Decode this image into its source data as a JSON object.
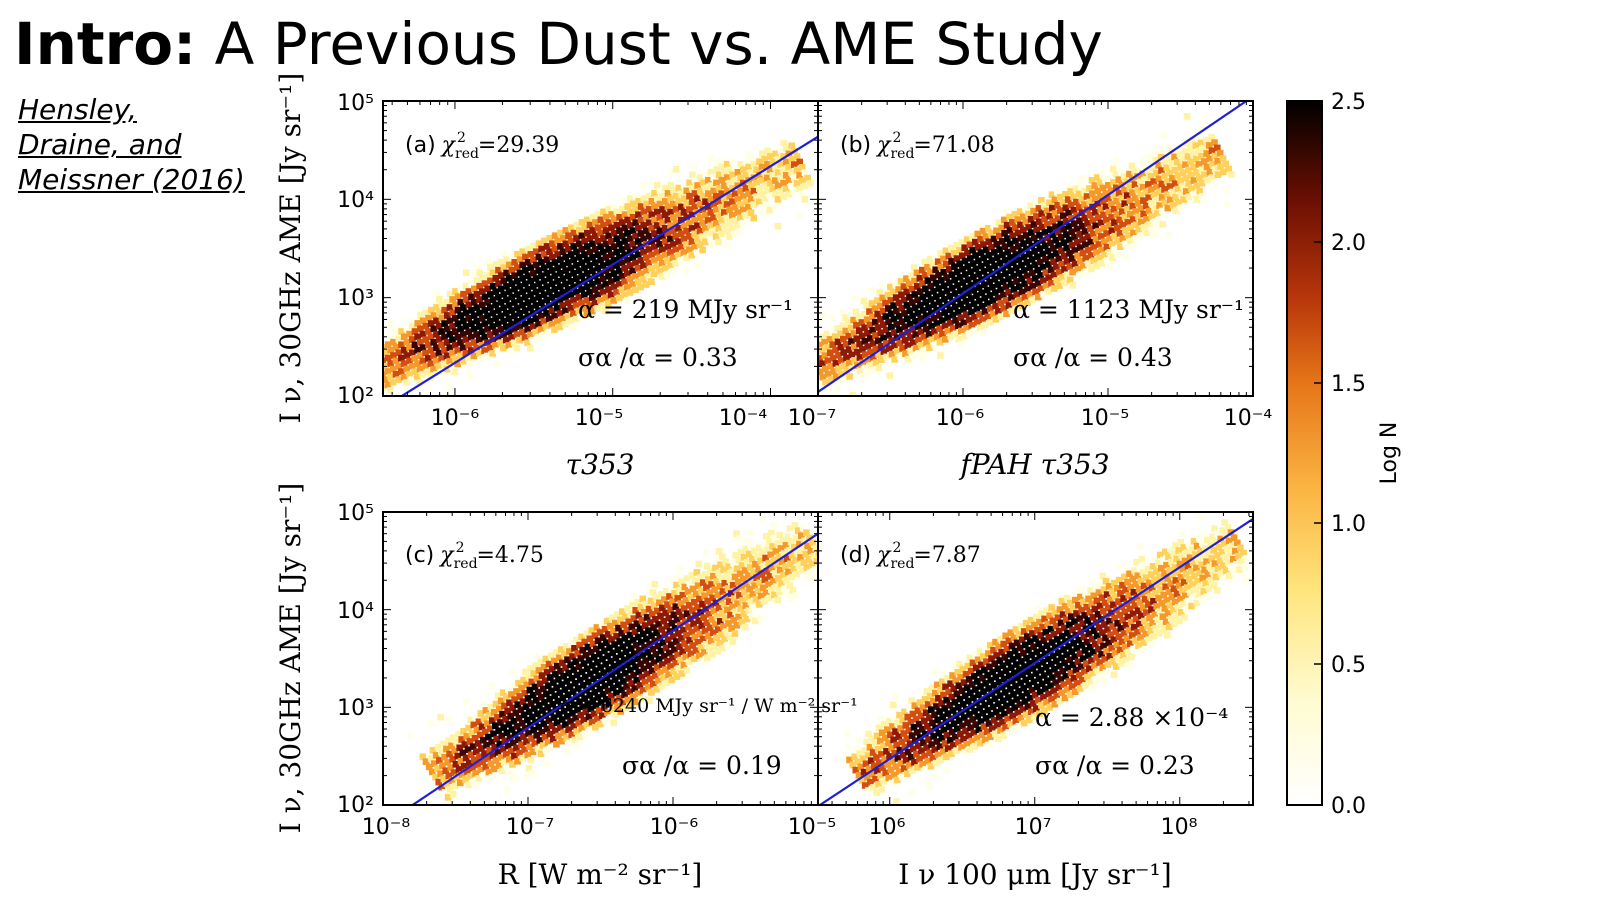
{
  "slide": {
    "title_bold": "Intro:",
    "title_rest": " A Previous Dust vs. AME Study",
    "citation_lines": [
      "Hensley,",
      "Draine, and",
      "Meissner (2016)"
    ]
  },
  "colors": {
    "fit_line": "#1f1fd6",
    "cmap": [
      "#ffffe8",
      "#fff3a6",
      "#ffd05a",
      "#f59a2a",
      "#d24f10",
      "#8e1a05",
      "#3a0500",
      "#000000"
    ]
  },
  "colorbar": {
    "label": "Log N",
    "min": 0.0,
    "max": 2.5,
    "ticks": [
      "0.0",
      "0.5",
      "1.0",
      "1.5",
      "2.0",
      "2.5"
    ]
  },
  "chart_data": [
    {
      "panel": "(a)",
      "type": "heatmap",
      "chi2_red": "29.39",
      "alpha_text": "α = 219 MJy sr⁻¹",
      "sigma_text": "σα /α = 0.33",
      "xlabel": "τ353",
      "ylabel": "I ν, 30GHz AME [Jy sr⁻¹]",
      "xscale": "log",
      "yscale": "log",
      "xlim": [
        3.5e-07,
        0.0002
      ],
      "ylim": [
        100,
        100000
      ],
      "xticks": [
        "10⁻⁶",
        "10⁻⁵",
        "10⁻⁴"
      ],
      "yticks": [
        "10²",
        "10³",
        "10⁴",
        "10⁵"
      ],
      "fit_line": {
        "x": [
          4.6e-07,
          0.0003
        ],
        "y": [
          100,
          65000
        ]
      },
      "density_ridge": {
        "x0": 4e-07,
        "x1": 0.00012,
        "y0": 220,
        "y1": 20000
      }
    },
    {
      "panel": "(b)",
      "type": "heatmap",
      "chi2_red": "71.08",
      "alpha_text": "α = 1123 MJy sr⁻¹",
      "sigma_text": "σα /α = 0.43",
      "xlabel": "fPAH τ353",
      "ylabel": "",
      "xscale": "log",
      "yscale": "log",
      "xlim": [
        1e-07,
        0.0001
      ],
      "ylim": [
        100,
        100000
      ],
      "xticks": [
        "10⁻⁷",
        "10⁻⁶",
        "10⁻⁵",
        "10⁻⁴"
      ],
      "yticks": [],
      "fit_line": {
        "x": [
          1e-07,
          9e-05
        ],
        "y": [
          110,
          100000
        ]
      },
      "density_ridge": {
        "x0": 1.3e-07,
        "x1": 4.5e-05,
        "y0": 250,
        "y1": 24000
      }
    },
    {
      "panel": "(c)",
      "type": "heatmap",
      "chi2_red": "4.75",
      "alpha_text": "α = 6240 MJy sr⁻¹ / W m⁻² sr⁻¹",
      "sigma_text": "σα /α = 0.19",
      "xlabel": "R [W m⁻² sr⁻¹]",
      "ylabel": "I ν, 30GHz AME [Jy sr⁻¹]",
      "xscale": "log",
      "yscale": "log",
      "xlim": [
        1e-08,
        1e-05
      ],
      "ylim": [
        100,
        100000
      ],
      "xticks": [
        "10⁻⁸",
        "10⁻⁷",
        "10⁻⁶",
        "10⁻⁵"
      ],
      "yticks": [
        "10²",
        "10³",
        "10⁴",
        "10⁵"
      ],
      "fit_line": {
        "x": [
          1.6e-08,
          1e-05
        ],
        "y": [
          100,
          60000
        ]
      },
      "density_ridge": {
        "x0": 3e-08,
        "x1": 7e-06,
        "y0": 250,
        "y1": 38000
      }
    },
    {
      "panel": "(d)",
      "type": "heatmap",
      "chi2_red": "7.87",
      "alpha_text": "α = 2.88 ×10⁻⁴",
      "sigma_text": "σα /α = 0.23",
      "xlabel": "I ν 100 μm [Jy sr⁻¹]",
      "ylabel": "",
      "xscale": "log",
      "yscale": "log",
      "xlim": [
        320000,
        320000000
      ],
      "ylim": [
        100,
        100000
      ],
      "xticks": [
        "10⁶",
        "10⁷",
        "10⁸"
      ],
      "yticks": [],
      "fit_line": {
        "x": [
          330000,
          320000000
        ],
        "y": [
          100,
          85000
        ]
      },
      "density_ridge": {
        "x0": 800000,
        "x1": 200000000,
        "y0": 260,
        "y1": 40000
      }
    }
  ]
}
